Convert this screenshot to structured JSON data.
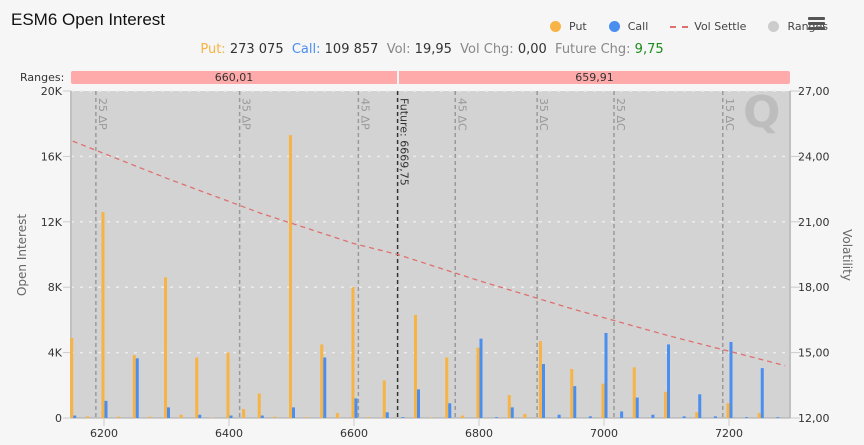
{
  "header": {
    "title": "ESM6 Open Interest",
    "menu_icon": "hamburger-menu-icon"
  },
  "legend": [
    {
      "label": "Put",
      "color": "#f7b344",
      "type": "dot"
    },
    {
      "label": "Call",
      "color": "#4a8ef0",
      "type": "dot"
    },
    {
      "label": "Vol Settle",
      "color": "#e07070",
      "type": "dash"
    },
    {
      "label": "Ranges",
      "color": "#cccccc",
      "type": "dot"
    }
  ],
  "stats": {
    "put_label": "Put:",
    "put_value": "273 075",
    "call_label": "Call:",
    "call_value": "109 857",
    "vol_label": "Vol:",
    "vol_value": "19,95",
    "vol_chg_label": "Vol Chg:",
    "vol_chg_value": "0,00",
    "future_chg_label": "Future Chg:",
    "future_chg_value": "9,75"
  },
  "ranges": {
    "label": "Ranges:",
    "left_value": "660,01",
    "right_value": "659,91"
  },
  "chart_data": {
    "type": "bar",
    "title": "ESM6 Open Interest",
    "xlabel": "",
    "ylabel": "Open Interest",
    "y2label": "Volatility",
    "ylim": [
      0,
      20000
    ],
    "y2lim": [
      12,
      27
    ],
    "yticks": [
      "0",
      "4K",
      "8K",
      "12K",
      "16K",
      "20K"
    ],
    "y2ticks": [
      "12,00",
      "15,00",
      "18,00",
      "21,00",
      "24,00",
      "27,00"
    ],
    "xticks": [
      "6200",
      "6400",
      "6600",
      "6800",
      "7000",
      "7200"
    ],
    "xlim": [
      6145,
      7290
    ],
    "grid": true,
    "legend_position": "top-right",
    "categories": [
      6150,
      6175,
      6200,
      6225,
      6250,
      6275,
      6300,
      6325,
      6350,
      6375,
      6400,
      6425,
      6450,
      6475,
      6500,
      6525,
      6550,
      6575,
      6600,
      6625,
      6650,
      6675,
      6700,
      6725,
      6750,
      6775,
      6800,
      6825,
      6850,
      6875,
      6900,
      6925,
      6950,
      6975,
      7000,
      7025,
      7050,
      7075,
      7100,
      7125,
      7150,
      7175,
      7200,
      7225,
      7250,
      7275
    ],
    "series": [
      {
        "name": "Put",
        "color": "#f7b344",
        "values": [
          4900,
          100,
          12600,
          80,
          3850,
          80,
          8600,
          200,
          3700,
          30,
          4000,
          550,
          1500,
          80,
          17300,
          50,
          4500,
          300,
          8000,
          50,
          2300,
          0,
          6300,
          30,
          3700,
          150,
          4300,
          0,
          1400,
          250,
          4700,
          0,
          3000,
          0,
          2100,
          0,
          3100,
          0,
          1600,
          0,
          350,
          0,
          900,
          0,
          300,
          0
        ]
      },
      {
        "name": "Call",
        "color": "#4a8ef0",
        "values": [
          150,
          0,
          1050,
          0,
          3650,
          0,
          650,
          0,
          200,
          0,
          150,
          0,
          150,
          0,
          650,
          0,
          3700,
          0,
          1200,
          0,
          350,
          50,
          1750,
          0,
          900,
          0,
          4850,
          50,
          650,
          0,
          3300,
          200,
          1950,
          100,
          5200,
          400,
          1250,
          200,
          4500,
          100,
          1450,
          100,
          4650,
          50,
          3050,
          50
        ]
      },
      {
        "name": "Vol Settle",
        "color": "#e07070",
        "type": "line",
        "x": [
          6150,
          6300,
          6450,
          6600,
          6669.75,
          6800,
          6950,
          7100,
          7290
        ],
        "values": [
          24.7,
          23.0,
          21.4,
          20.0,
          19.5,
          18.3,
          17.0,
          15.8,
          14.4
        ]
      }
    ],
    "annotations": [
      {
        "type": "vertical-line",
        "x": 6669.75,
        "label": "Future: 6669,75"
      },
      {
        "type": "vertical-line",
        "x": 6187,
        "label": "25 ΔP"
      },
      {
        "type": "vertical-line",
        "x": 6417,
        "label": "35 ΔP"
      },
      {
        "type": "vertical-line",
        "x": 6607,
        "label": "45 ΔP"
      },
      {
        "type": "vertical-line",
        "x": 6762,
        "label": "45 ΔC"
      },
      {
        "type": "vertical-line",
        "x": 6893,
        "label": "35 ΔC"
      },
      {
        "type": "vertical-line",
        "x": 7016,
        "label": "25 ΔC"
      },
      {
        "type": "vertical-line",
        "x": 7190,
        "label": "15 ΔC"
      }
    ]
  }
}
